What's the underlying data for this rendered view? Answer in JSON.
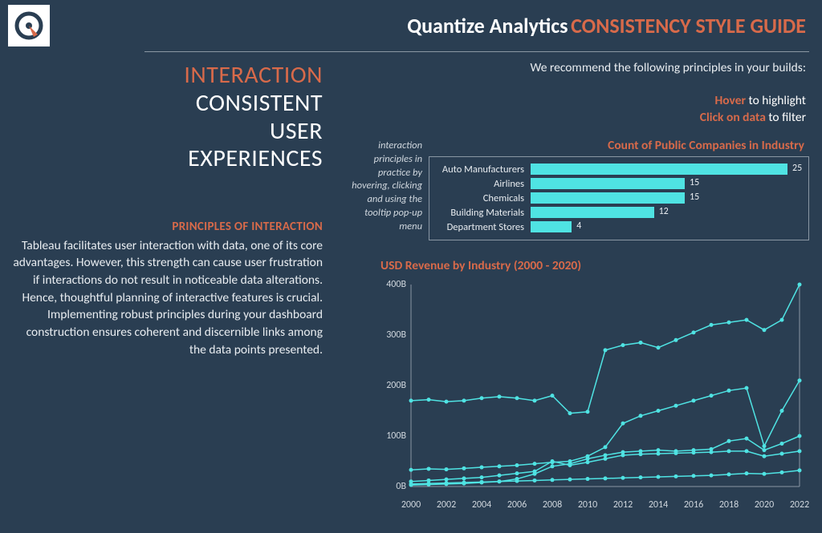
{
  "header": {
    "brand": "Quantize Analytics",
    "title_accent": "CONSISTENCY STYLE GUIDE"
  },
  "nav": {
    "title": "INTERACTION",
    "lines": [
      "CONSISTENT",
      "USER",
      "EXPERIENCES"
    ]
  },
  "principles": {
    "heading": "PRINCIPLES OF INTERACTION",
    "body": "Tableau facilitates user interaction with data, one of its core advantages. However, this strength can cause user frustration if interactions do not result in noticeable data alterations. Hence, thoughtful planning of interactive features is crucial. Implementing robust principles during your dashboard construction ensures coherent and discernible links among the data points presented."
  },
  "recommend": "We recommend the following principles in your builds:",
  "tips": {
    "hover_accent": "Hover",
    "hover_rest": " to highlight",
    "click_accent": "Click on data",
    "click_rest": " to filter"
  },
  "bar_caption": "interaction principles in practice by hovering, clicking and using the tooltip pop-up menu",
  "bar_chart": {
    "type": "bar",
    "title": "Count of Public Companies in Industry",
    "max": 25,
    "bar_color": "#4fe3e3",
    "border_color": "#8a97a4",
    "text_color": "#e8ecf0",
    "categories": [
      "Auto Manufacturers",
      "Airlines",
      "Chemicals",
      "Building Materials",
      "Department Stores"
    ],
    "values": [
      25,
      15,
      15,
      12,
      4
    ]
  },
  "line_chart": {
    "type": "line",
    "title": "USD Revenue by Industry (2000 - 2020)",
    "x_years": [
      2000,
      2001,
      2002,
      2003,
      2004,
      2005,
      2006,
      2007,
      2008,
      2009,
      2010,
      2011,
      2012,
      2013,
      2014,
      2015,
      2016,
      2017,
      2018,
      2019,
      2020,
      2021,
      2022
    ],
    "x_ticks": [
      2000,
      2002,
      2004,
      2006,
      2008,
      2010,
      2012,
      2014,
      2016,
      2018,
      2020,
      2022
    ],
    "ylim": [
      0,
      400
    ],
    "y_ticks": [
      0,
      100,
      200,
      300,
      400
    ],
    "y_tick_labels": [
      "0B",
      "100B",
      "200B",
      "300B",
      "400B"
    ],
    "line_color": "#4fe3e3",
    "marker_size": 2.5,
    "grid_color": "#8a97a4",
    "background": "#2a3e52",
    "series": [
      {
        "name": "s1",
        "values": [
          170,
          172,
          168,
          170,
          175,
          178,
          175,
          170,
          180,
          145,
          148,
          270,
          280,
          285,
          275,
          290,
          305,
          320,
          325,
          330,
          310,
          330,
          400
        ]
      },
      {
        "name": "s2",
        "values": [
          33,
          35,
          34,
          36,
          38,
          40,
          42,
          45,
          48,
          50,
          60,
          78,
          125,
          140,
          150,
          160,
          170,
          180,
          190,
          195,
          80,
          150,
          210
        ]
      },
      {
        "name": "s3",
        "values": [
          3,
          4,
          5,
          6,
          8,
          10,
          15,
          25,
          40,
          45,
          55,
          62,
          68,
          70,
          72,
          70,
          72,
          74,
          90,
          95,
          72,
          85,
          100
        ]
      },
      {
        "name": "s4",
        "values": [
          10,
          12,
          14,
          16,
          18,
          22,
          26,
          30,
          50,
          42,
          48,
          55,
          62,
          64,
          65,
          66,
          67,
          68,
          70,
          70,
          60,
          65,
          70
        ]
      },
      {
        "name": "s5",
        "values": [
          5,
          6,
          7,
          8,
          9,
          10,
          11,
          12,
          13,
          14,
          15,
          16,
          17,
          18,
          19,
          20,
          21,
          22,
          24,
          26,
          25,
          28,
          32
        ]
      }
    ]
  },
  "colors": {
    "background": "#2a3e52",
    "accent": "#d86a4a",
    "text": "#ffffff",
    "muted": "#cfd6dd",
    "chart": "#4fe3e3"
  }
}
